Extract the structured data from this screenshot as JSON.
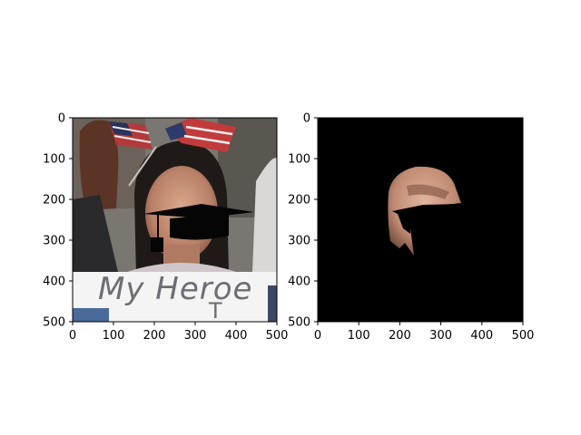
{
  "chart_data": [
    {
      "type": "image",
      "title": "",
      "xlabel": "",
      "ylabel": "",
      "xlim": [
        0,
        500
      ],
      "ylim": [
        500,
        0
      ],
      "xticks": [
        0,
        100,
        200,
        300,
        400,
        500
      ],
      "yticks": [
        0,
        100,
        200,
        300,
        400,
        500
      ],
      "background": "#7a7670",
      "sign_text": "My Heroe",
      "sign_text_2": "T"
    },
    {
      "type": "image",
      "title": "",
      "xlabel": "",
      "ylabel": "",
      "xlim": [
        0,
        500
      ],
      "ylim": [
        500,
        0
      ],
      "xticks": [
        0,
        100,
        200,
        300,
        400,
        500
      ],
      "yticks": [
        0,
        100,
        200,
        300,
        400,
        500
      ],
      "background": "#000000"
    }
  ]
}
